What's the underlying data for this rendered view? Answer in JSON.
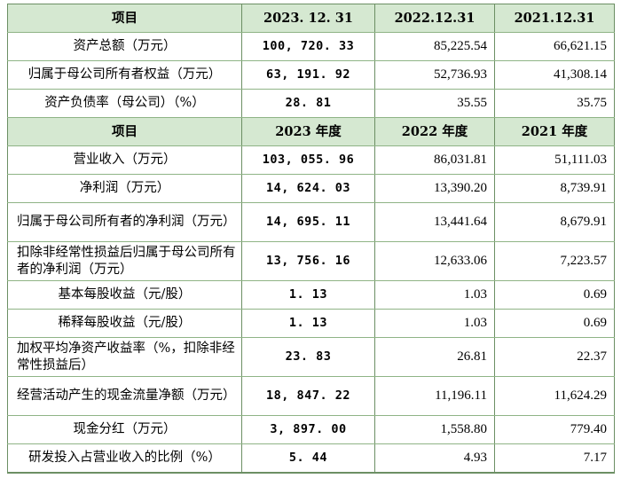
{
  "header1": [
    "项目",
    "2023. 12. 31",
    "2022.12.31",
    "2021.12.31"
  ],
  "rows1": [
    {
      "label": "资产总额（万元）",
      "v2023": "100, 720. 33",
      "v2022": "85,225.54",
      "v2021": "66,621.15"
    },
    {
      "label": "归属于母公司所有者权益（万元）",
      "v2023": "63, 191. 92",
      "v2022": "52,736.93",
      "v2021": "41,308.14"
    },
    {
      "label": "资产负债率（母公司）（%）",
      "v2023": "28. 81",
      "v2022": "35.55",
      "v2021": "35.75"
    }
  ],
  "header2": [
    "项目",
    "2023 年度",
    "2022 年度",
    "2021 年度"
  ],
  "rows2": [
    {
      "label": "营业收入（万元）",
      "v2023": "103, 055. 96",
      "v2022": "86,031.81",
      "v2021": "51,111.03"
    },
    {
      "label": "净利润（万元）",
      "v2023": "14, 624. 03",
      "v2022": "13,390.20",
      "v2021": "8,739.91"
    },
    {
      "label": "归属于母公司所有者的净利润（万元）",
      "v2023": "14, 695. 11",
      "v2022": "13,441.64",
      "v2021": "8,679.91"
    },
    {
      "label": "扣除非经常性损益后归属于母公司所有者的净利润（万元）",
      "v2023": "13, 756. 16",
      "v2022": "12,633.06",
      "v2021": "7,223.57"
    },
    {
      "label": "基本每股收益（元/股）",
      "v2023": "1. 13",
      "v2022": "1.03",
      "v2021": "0.69"
    },
    {
      "label": "稀释每股收益（元/股）",
      "v2023": "1. 13",
      "v2022": "1.03",
      "v2021": "0.69"
    },
    {
      "label": "加权平均净资产收益率（%，扣除非经常性损益后）",
      "v2023": "23. 83",
      "v2022": "26.81",
      "v2021": "22.37"
    },
    {
      "label": "经营活动产生的现金流量净额（万元）",
      "v2023": "18, 847. 22",
      "v2022": "11,196.11",
      "v2021": "11,624.29"
    },
    {
      "label": "现金分红（万元）",
      "v2023": "3, 897. 00",
      "v2022": "1,558.80",
      "v2021": "779.40"
    },
    {
      "label": "研发投入占营业收入的比例（%）",
      "v2023": "5. 44",
      "v2022": "4.93",
      "v2021": "7.17"
    }
  ]
}
